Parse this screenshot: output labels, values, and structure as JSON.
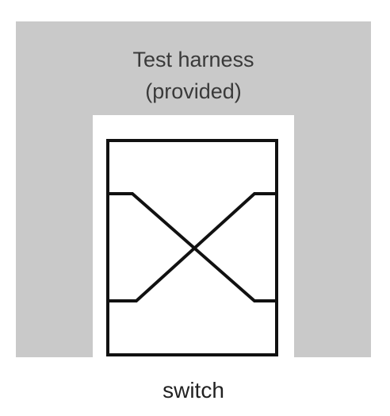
{
  "harness": {
    "title_line1": "Test harness",
    "title_line2": "(provided)",
    "color": "#c9c9c9"
  },
  "switch": {
    "label": "switch",
    "stroke_color": "#111111"
  }
}
